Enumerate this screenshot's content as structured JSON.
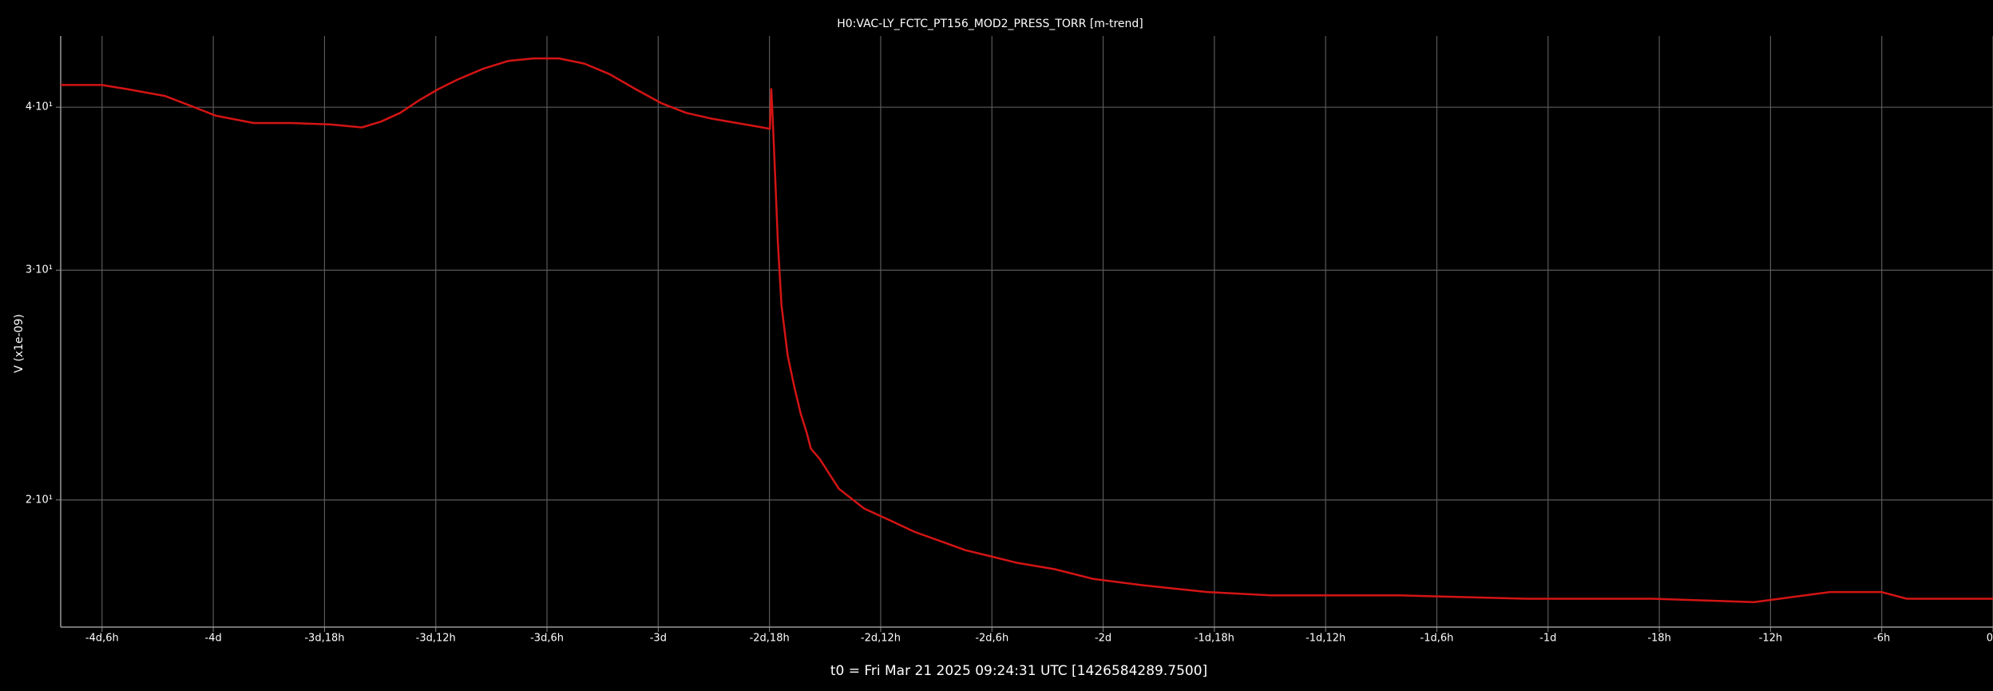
{
  "chart_data": {
    "type": "line",
    "title": "H0:VAC-LY_FCTC_PT156_MOD2_PRESS_TORR [m-trend]",
    "y_label": "V (x1e-09)",
    "x_label": "t0 = Fri Mar 21 2025 09:24:31 UTC [1426584289.7500]",
    "x": [
      -4.343,
      -4.251,
      -4.194,
      -4.109,
      -4.051,
      -3.994,
      -3.909,
      -3.823,
      -3.737,
      -3.666,
      -3.623,
      -3.58,
      -3.537,
      -3.494,
      -3.451,
      -3.394,
      -3.337,
      -3.28,
      -3.223,
      -3.166,
      -3.109,
      -3.051,
      -2.994,
      -2.937,
      -2.88,
      -2.823,
      -2.766,
      -2.749,
      -2.746,
      -2.743,
      -2.737,
      -2.731,
      -2.723,
      -2.709,
      -2.694,
      -2.68,
      -2.666,
      -2.657,
      -2.637,
      -2.594,
      -2.537,
      -2.48,
      -2.423,
      -2.366,
      -2.309,
      -2.251,
      -2.194,
      -2.109,
      -2.023,
      -1.909,
      -1.766,
      -1.623,
      -1.337,
      -1.051,
      -0.766,
      -0.537,
      -0.366,
      -0.251,
      -0.194,
      0
    ],
    "series": [
      {
        "name": "H0:VAC-LY_FCTC_PT156_MOD2_PRESS_TORR",
        "color": "#d41414",
        "values": [
          41.6,
          41.6,
          41.3,
          40.8,
          40.1,
          39.4,
          38.9,
          38.9,
          38.8,
          38.6,
          39.0,
          39.6,
          40.5,
          41.3,
          42.0,
          42.8,
          43.4,
          43.6,
          43.6,
          43.2,
          42.4,
          41.3,
          40.3,
          39.6,
          39.2,
          38.9,
          38.6,
          38.5,
          41.3,
          39.5,
          35.3,
          31.5,
          28.2,
          25.8,
          24.4,
          23.3,
          22.5,
          21.9,
          21.5,
          20.4,
          19.7,
          19.3,
          18.9,
          18.6,
          18.3,
          18.1,
          17.9,
          17.7,
          17.4,
          17.2,
          17.0,
          16.9,
          16.9,
          16.8,
          16.8,
          16.7,
          17.0,
          17.0,
          16.8,
          16.8
        ]
      }
    ],
    "xlim": [
      -4.343,
      0
    ],
    "xticks": [
      {
        "value": -4.25,
        "label": "-4d,6h"
      },
      {
        "value": -4,
        "label": "-4d"
      },
      {
        "value": -3.75,
        "label": "-3d,18h"
      },
      {
        "value": -3.5,
        "label": "-3d,12h"
      },
      {
        "value": -3.25,
        "label": "-3d,6h"
      },
      {
        "value": -3,
        "label": "-3d"
      },
      {
        "value": -2.75,
        "label": "-2d,18h"
      },
      {
        "value": -2.5,
        "label": "-2d,12h"
      },
      {
        "value": -2.25,
        "label": "-2d,6h"
      },
      {
        "value": -2,
        "label": "-2d"
      },
      {
        "value": -1.75,
        "label": "-1d,18h"
      },
      {
        "value": -1.5,
        "label": "-1d,12h"
      },
      {
        "value": -1.25,
        "label": "-1d,6h"
      },
      {
        "value": -1,
        "label": "-1d"
      },
      {
        "value": -0.75,
        "label": "-18h"
      },
      {
        "value": -0.5,
        "label": "-12h"
      },
      {
        "value": -0.25,
        "label": "-6h"
      },
      0
    ],
    "ylim": [
      15.98,
      45.36
    ],
    "yticks": [
      {
        "value": 20,
        "label": "2·10¹"
      },
      {
        "value": 30,
        "label": "3·10¹"
      },
      {
        "value": 40,
        "label": "4·10¹"
      }
    ],
    "y_scale": "log",
    "grid": true
  }
}
